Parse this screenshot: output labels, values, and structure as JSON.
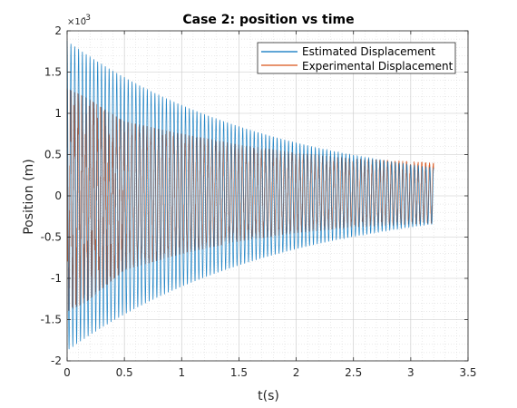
{
  "chart_data": {
    "type": "line",
    "title": "Case 2: position vs time",
    "xlabel": "t(s)",
    "ylabel": "Position (m)",
    "xlim": [
      0,
      3.5
    ],
    "ylim": [
      -0.002,
      0.002
    ],
    "x_ticks": [
      "0",
      "0.5",
      "1",
      "1.5",
      "2",
      "2.5",
      "3",
      "3.5"
    ],
    "y_ticks": [
      "-2",
      "-1.5",
      "-1",
      "-0.5",
      "0",
      "0.5",
      "1",
      "1.5",
      "2"
    ],
    "y_tick_values": [
      -0.002,
      -0.0015,
      -0.001,
      -0.0005,
      0,
      0.0005,
      0.001,
      0.0015,
      0.002
    ],
    "x_tick_values": [
      0,
      0.5,
      1,
      1.5,
      2,
      2.5,
      3,
      3.5
    ],
    "y_exponent_base": "×10",
    "y_exponent_power": "-3",
    "grid": "major-and-minor",
    "legend_position": "top-right",
    "series": [
      {
        "name": "Estimated Displacement",
        "color": "#0072BD",
        "kind": "damped-oscillation",
        "t_start": 0,
        "t_end": 3.2,
        "dt": 0.001,
        "frequency_hz": 30,
        "initial_amplitude": 0.00188,
        "final_amplitude": 0.00034,
        "offset": 0
      },
      {
        "name": "Experimental Displacement",
        "color": "#D95319",
        "kind": "noisy-oscillation",
        "t_start": 0,
        "t_end": 3.2,
        "dt": 0.001,
        "frequency_hz": 30,
        "upper_envelope": [
          [
            0,
            0.0013
          ],
          [
            0.15,
            0.0012
          ],
          [
            0.5,
            0.0009
          ],
          [
            1.0,
            0.00075
          ],
          [
            1.5,
            0.00062
          ],
          [
            2.0,
            0.00052
          ],
          [
            2.5,
            0.00045
          ],
          [
            3.2,
            0.0004
          ]
        ],
        "lower_envelope": [
          [
            0,
            -0.0014
          ],
          [
            0.15,
            -0.0013
          ],
          [
            0.5,
            -0.0009
          ],
          [
            1.0,
            -0.0007
          ],
          [
            1.5,
            -0.00055
          ],
          [
            2.0,
            -0.00045
          ],
          [
            2.5,
            -0.00038
          ],
          [
            3.2,
            -0.00033
          ]
        ]
      }
    ]
  }
}
